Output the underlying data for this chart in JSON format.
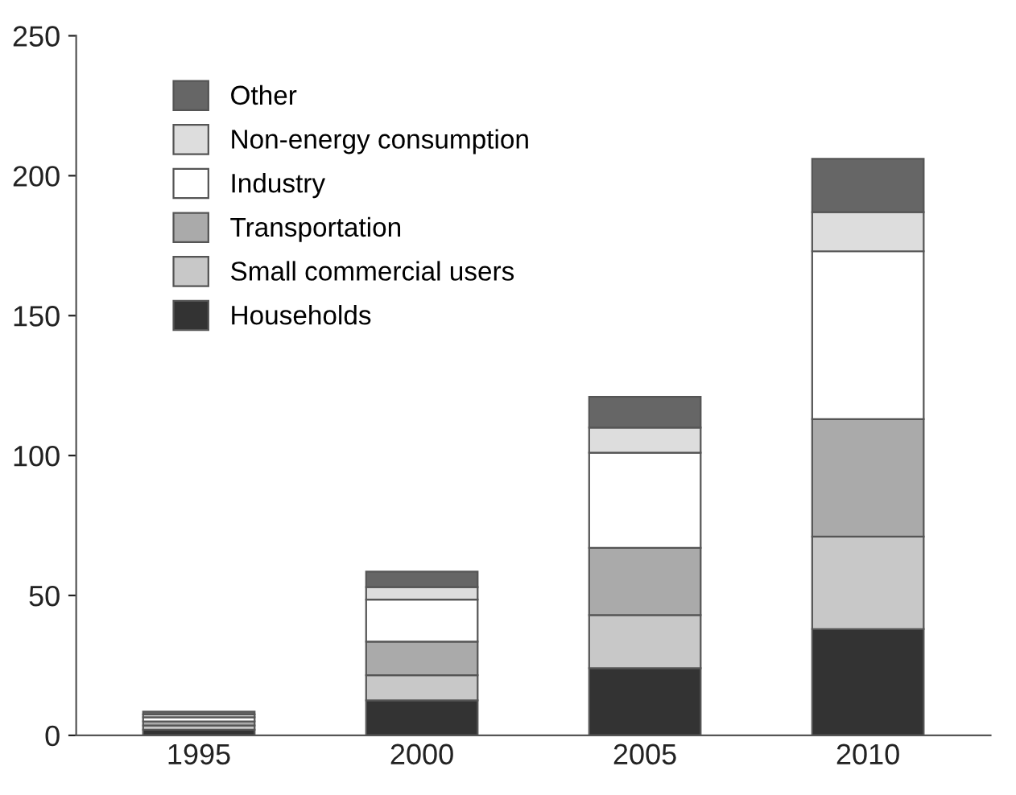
{
  "chart_data": {
    "type": "bar",
    "stacked": true,
    "categories": [
      "1995",
      "2000",
      "2005",
      "2010"
    ],
    "series": [
      {
        "name": "Households",
        "color": "#333333",
        "values": [
          2,
          12.5,
          24,
          38
        ]
      },
      {
        "name": "Small commercial users",
        "color": "#c8c8c8",
        "values": [
          1.5,
          9,
          19,
          33
        ]
      },
      {
        "name": "Transportation",
        "color": "#aaaaaa",
        "values": [
          1.5,
          12,
          24,
          42
        ]
      },
      {
        "name": "Industry",
        "color": "#ffffff",
        "values": [
          1.5,
          15,
          34,
          60
        ]
      },
      {
        "name": "Non-energy consumption",
        "color": "#dddddd",
        "values": [
          1,
          4.5,
          9,
          14
        ]
      },
      {
        "name": "Other",
        "color": "#666666",
        "values": [
          1,
          5.5,
          11,
          19
        ]
      }
    ],
    "ylim": [
      0,
      250
    ],
    "yticks": [
      0,
      50,
      100,
      150,
      200,
      250
    ],
    "grid": false,
    "legend": "top left"
  }
}
